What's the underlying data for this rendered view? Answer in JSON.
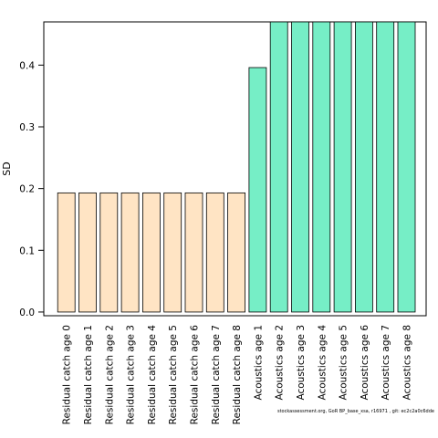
{
  "chart_data": {
    "type": "bar",
    "ylabel": "SD",
    "xlabel": "",
    "ylim": [
      -0.006,
      0.47
    ],
    "yticks": [
      0.0,
      0.1,
      0.2,
      0.3,
      0.4
    ],
    "ytick_labels": [
      "0.0",
      "0.1",
      "0.2",
      "0.3",
      "0.4"
    ],
    "grid": false,
    "categories": [
      "Residual catch age 0",
      "Residual catch age 1",
      "Residual catch age 2",
      "Residual catch age 3",
      "Residual catch age 4",
      "Residual catch age 5",
      "Residual catch age 6",
      "Residual catch age 7",
      "Residual catch age 8",
      "Acoustics age 1",
      "Acoustics age 2",
      "Acoustics age 3",
      "Acoustics age 4",
      "Acoustics age 5",
      "Acoustics age 6",
      "Acoustics age 7",
      "Acoustics age 8"
    ],
    "values": [
      0.193,
      0.193,
      0.193,
      0.193,
      0.193,
      0.193,
      0.193,
      0.193,
      0.193,
      0.396,
      0.47,
      0.47,
      0.47,
      0.47,
      0.47,
      0.47,
      0.47
    ],
    "bar_colors": [
      "#ffe4c4",
      "#ffe4c4",
      "#ffe4c4",
      "#ffe4c4",
      "#ffe4c4",
      "#ffe4c4",
      "#ffe4c4",
      "#ffe4c4",
      "#ffe4c4",
      "#76eec6",
      "#76eec6",
      "#76eec6",
      "#76eec6",
      "#76eec6",
      "#76eec6",
      "#76eec6",
      "#76eec6"
    ]
  },
  "footer": "stockassessment.org, GoR BP_base_xsa, r16971 , git: ec2c2a0c6dde"
}
